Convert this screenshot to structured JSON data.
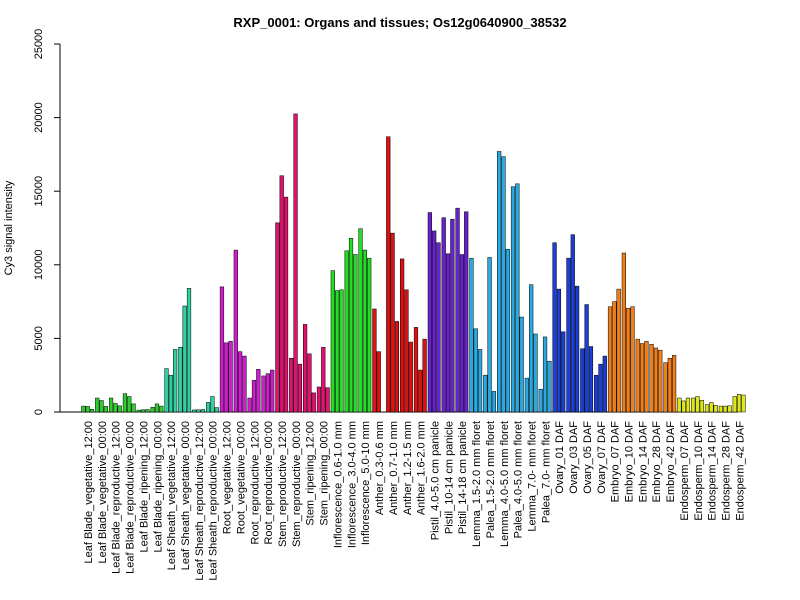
{
  "chart_data": {
    "type": "bar",
    "title": "RXP_0001: Organs and tissues; Os12g0640900_38532",
    "xlabel": "",
    "ylabel": "Cy3 signal intensity",
    "ylim": [
      0,
      25000
    ],
    "yticks": [
      0,
      5000,
      10000,
      15000,
      20000,
      25000
    ],
    "grid": false,
    "groups": [
      {
        "label": "Leaf Blade_vegetative_12:00",
        "color": "#2ecc2e",
        "values": [
          400,
          380,
          180
        ]
      },
      {
        "label": "Leaf Blade_vegetative_00:00",
        "color": "#2ecc2e",
        "values": [
          950,
          780,
          380
        ]
      },
      {
        "label": "Leaf Blade_reproductive_12:00",
        "color": "#2ecc2e",
        "values": [
          950,
          580,
          420
        ]
      },
      {
        "label": "Leaf Blade_reproductive_00:00",
        "color": "#2ecc2e",
        "values": [
          1250,
          1050,
          550
        ]
      },
      {
        "label": "Leaf Blade_ripening_12:00",
        "color": "#2ecc2e",
        "values": [
          130,
          150,
          170
        ]
      },
      {
        "label": "Leaf Blade_ripening_00:00",
        "color": "#2ecc2e",
        "values": [
          320,
          550,
          400
        ]
      },
      {
        "label": "Leaf Sheath_vegetative_12:00",
        "color": "#2ecfa0",
        "values": [
          2950,
          2500,
          4250
        ]
      },
      {
        "label": "Leaf Sheath_vegetative_00:00",
        "color": "#2ecfa0",
        "values": [
          4400,
          7200,
          8400
        ]
      },
      {
        "label": "Leaf Sheath_reproductive_12:00",
        "color": "#2ecfa0",
        "values": [
          140,
          150,
          170
        ]
      },
      {
        "label": "Leaf Sheath_reproductive_00:00",
        "color": "#2ecfa0",
        "values": [
          650,
          1050,
          300
        ]
      },
      {
        "label": "Root_vegetative_12:00",
        "color": "#cc1ecc",
        "values": [
          8500,
          4700,
          4800
        ]
      },
      {
        "label": "Root_vegetative_00:00",
        "color": "#cc1ecc",
        "values": [
          11000,
          4100,
          3800
        ]
      },
      {
        "label": "Root_reproductive_12:00",
        "color": "#cc1ecc",
        "values": [
          950,
          2150,
          2900
        ]
      },
      {
        "label": "Root_reproductive_00:00",
        "color": "#cc1ecc",
        "values": [
          2450,
          2600,
          2850
        ]
      },
      {
        "label": "Stem_reproductive_12:00",
        "color": "#e0126e",
        "values": [
          12850,
          16050,
          14600
        ]
      },
      {
        "label": "Stem_reproductive_00:00",
        "color": "#e0126e",
        "values": [
          3650,
          20250,
          3250
        ]
      },
      {
        "label": "Stem_ripening_12:00",
        "color": "#e0126e",
        "values": [
          5950,
          3950,
          1300
        ]
      },
      {
        "label": "Stem_ripening_00:00",
        "color": "#e0126e",
        "values": [
          1700,
          4400,
          1650
        ]
      },
      {
        "label": "Inflorescence_0.6-1.0 mm",
        "color": "#22dd22",
        "values": [
          9600,
          8250,
          8300
        ]
      },
      {
        "label": "Inflorescence_3.0-4.0 mm",
        "color": "#22dd22",
        "values": [
          10950,
          11800,
          10700
        ]
      },
      {
        "label": "Inflorescence_5.0-10 mm",
        "color": "#22dd22",
        "values": [
          12450,
          11000,
          10450
        ]
      },
      {
        "label": "Anther_0.3-0.6 mm",
        "color": "#dd1111",
        "values": [
          7000,
          4100
        ]
      },
      {
        "label": "Anther_0.7-1.0 mm",
        "color": "#dd1111",
        "values": [
          18700,
          12150,
          6150
        ]
      },
      {
        "label": "Anther_1.2-1.5 mm",
        "color": "#dd1111",
        "values": [
          10400,
          8300,
          4750
        ]
      },
      {
        "label": "Anther_1.6-2.0 mm",
        "color": "#dd1111",
        "values": [
          5750,
          2850,
          4950
        ]
      },
      {
        "label": "Pistil_4.0-5.0 cm panicle",
        "color": "#6622cc",
        "values": [
          13550,
          12300,
          11500
        ]
      },
      {
        "label": "Pistil_10-14 cm panicle",
        "color": "#6622cc",
        "values": [
          13200,
          10750,
          13100
        ]
      },
      {
        "label": "Pistil_14-18 cm panicle",
        "color": "#6622cc",
        "values": [
          13850,
          10700,
          13600
        ]
      },
      {
        "label": "Lemma_1.5-2.0 mm floret",
        "color": "#2aa9e0",
        "values": [
          10450,
          5650,
          4250
        ]
      },
      {
        "label": "Palea_1.5-2.0 mm floret",
        "color": "#2aa9e0",
        "values": [
          2500,
          10500,
          1400
        ]
      },
      {
        "label": "Lemma_4.0-5.0 mm floret",
        "color": "#2aa9e0",
        "values": [
          17700,
          17350,
          11050
        ]
      },
      {
        "label": "Palea_4.0-5.0 mm floret",
        "color": "#2aa9e0",
        "values": [
          15300,
          15500,
          6450
        ]
      },
      {
        "label": "Lemma_7.0- mm floret",
        "color": "#2aa9e0",
        "values": [
          2300,
          8650,
          5300
        ]
      },
      {
        "label": "Palea_7.0- mm floret",
        "color": "#2aa9e0",
        "values": [
          1550,
          5100,
          3450
        ]
      },
      {
        "label": "Ovary_01 DAF",
        "color": "#1a3ed6",
        "values": [
          11500,
          8350,
          5450
        ]
      },
      {
        "label": "Ovary_03 DAF",
        "color": "#1a3ed6",
        "values": [
          10450,
          12050,
          8550
        ]
      },
      {
        "label": "Ovary_05 DAF",
        "color": "#1a3ed6",
        "values": [
          4300,
          7300,
          4450
        ]
      },
      {
        "label": "Ovary_07 DAF",
        "color": "#1a3ed6",
        "values": [
          2500,
          3250,
          3800
        ]
      },
      {
        "label": "Embryo_07 DAF",
        "color": "#f07f1a",
        "values": [
          7150,
          7500,
          8350
        ]
      },
      {
        "label": "Embryo_10 DAF",
        "color": "#f07f1a",
        "values": [
          10800,
          7050,
          7150
        ]
      },
      {
        "label": "Embryo_14 DAF",
        "color": "#f07f1a",
        "values": [
          4950,
          4650,
          4800
        ]
      },
      {
        "label": "Embryo_28 DAF",
        "color": "#f07f1a",
        "values": [
          4600,
          4350,
          4200
        ]
      },
      {
        "label": "Embryo_42 DAF",
        "color": "#f07f1a",
        "values": [
          3350,
          3650,
          3850
        ]
      },
      {
        "label": "Endosperm_07 DAF",
        "color": "#dde81a",
        "values": [
          950,
          750,
          950
        ]
      },
      {
        "label": "Endosperm_10 DAF",
        "color": "#dde81a",
        "values": [
          950,
          1050,
          800
        ]
      },
      {
        "label": "Endosperm_14 DAF",
        "color": "#dde81a",
        "values": [
          500,
          650,
          450
        ]
      },
      {
        "label": "Endosperm_28 DAF",
        "color": "#dde81a",
        "values": [
          400,
          400,
          420
        ]
      },
      {
        "label": "Endosperm_42 DAF",
        "color": "#dde81a",
        "values": [
          1050,
          1200,
          1150
        ]
      }
    ]
  }
}
